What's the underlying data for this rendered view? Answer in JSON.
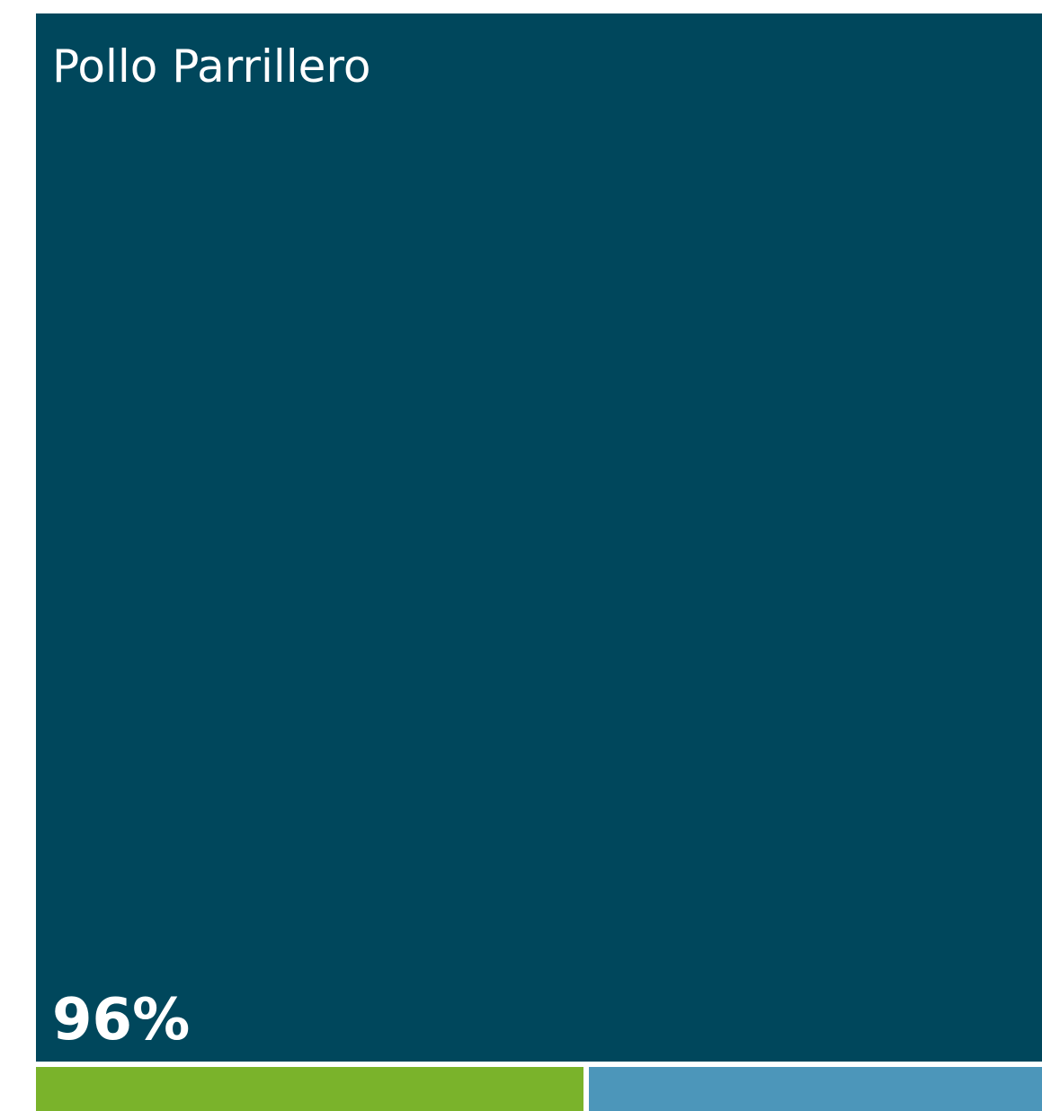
{
  "chart_data": {
    "type": "treemap",
    "items": [
      {
        "label": "Pollo Parrillero",
        "value": 96,
        "value_label": "96%",
        "color": "#00475C"
      },
      {
        "label": "",
        "value": 2.2,
        "value_label": "",
        "color": "#7AB32B"
      },
      {
        "label": "",
        "value": 1.8,
        "value_label": "",
        "color": "#4C96BA"
      }
    ],
    "value_unit": "%"
  }
}
